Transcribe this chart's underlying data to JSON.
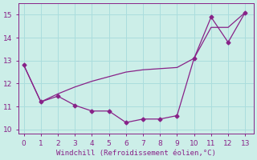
{
  "lineA_x": [
    0,
    1,
    2,
    3,
    4,
    5,
    6,
    7,
    8,
    9,
    10,
    11,
    12,
    13
  ],
  "lineA_y": [
    12.8,
    11.2,
    11.45,
    11.05,
    10.8,
    10.8,
    10.3,
    10.45,
    10.45,
    10.6,
    13.1,
    14.9,
    13.8,
    15.1
  ],
  "lineB_x": [
    0,
    1,
    2,
    3,
    4,
    5,
    6,
    7,
    8,
    9,
    10,
    11,
    12,
    13
  ],
  "lineB_y": [
    12.8,
    11.2,
    11.55,
    11.85,
    12.1,
    12.3,
    12.5,
    12.6,
    12.65,
    12.7,
    13.1,
    14.45,
    14.45,
    15.1
  ],
  "color": "#882288",
  "bg_color": "#cceee8",
  "grid_color": "#aadddd",
  "xlabel": "Windchill (Refroidissement éolien,°C)",
  "yticks": [
    10,
    11,
    12,
    13,
    14,
    15
  ],
  "xticks": [
    0,
    1,
    2,
    3,
    4,
    5,
    6,
    7,
    8,
    9,
    10,
    11,
    12,
    13
  ],
  "xlim": [
    -0.3,
    13.5
  ],
  "ylim": [
    9.8,
    15.5
  ]
}
